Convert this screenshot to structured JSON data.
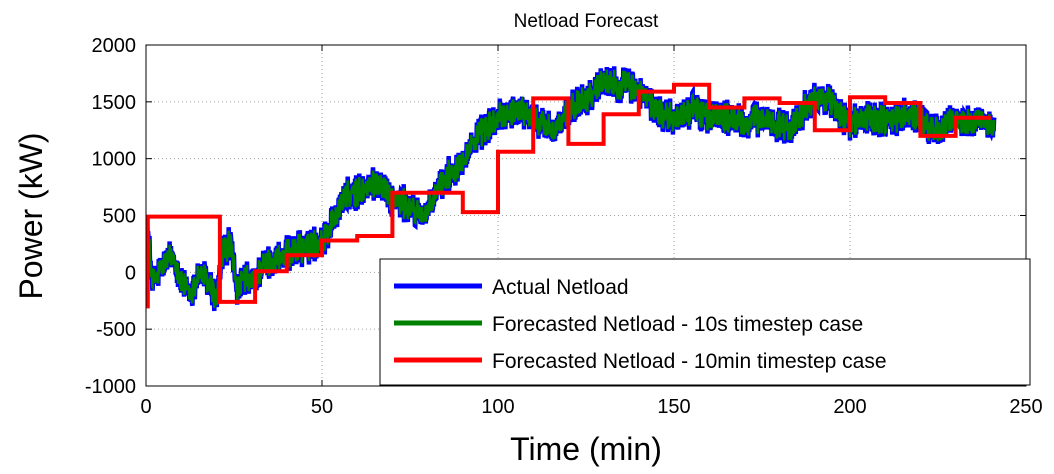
{
  "chart_data": {
    "type": "line",
    "title": "Netload Forecast",
    "xlabel": "Time (min)",
    "ylabel": "Power (kW)",
    "xlim": [
      0,
      250
    ],
    "ylim": [
      -1000,
      2000
    ],
    "xticks": [
      0,
      50,
      100,
      150,
      200,
      250
    ],
    "yticks": [
      -1000,
      -500,
      0,
      500,
      1000,
      1500,
      2000
    ],
    "xtick_labels": [
      "0",
      "50",
      "100",
      "150",
      "200",
      "250"
    ],
    "ytick_labels": [
      "-1000",
      "-500",
      "0",
      "500",
      "1000",
      "1500",
      "2000"
    ],
    "grid": true,
    "legend_position": "bottom-right",
    "series": [
      {
        "name": "Actual Netload",
        "color": "#0000ff",
        "style": "noisy",
        "x": [
          0,
          2,
          5,
          8,
          10,
          13,
          15,
          18,
          20,
          22,
          24,
          26,
          28,
          30,
          33,
          36,
          40,
          43,
          46,
          50,
          53,
          56,
          60,
          63,
          66,
          70,
          73,
          76,
          80,
          83,
          86,
          90,
          93,
          96,
          100,
          103,
          106,
          110,
          113,
          116,
          120,
          123,
          126,
          130,
          133,
          136,
          140,
          143,
          146,
          150,
          153,
          156,
          160,
          163,
          166,
          170,
          173,
          176,
          180,
          183,
          186,
          190,
          193,
          196,
          200,
          203,
          206,
          210,
          213,
          216,
          220,
          223,
          226,
          230,
          233,
          236,
          240,
          241
        ],
        "y": [
          450,
          -100,
          80,
          150,
          -100,
          -200,
          0,
          -100,
          -250,
          200,
          250,
          -150,
          -50,
          -100,
          50,
          100,
          150,
          200,
          230,
          280,
          450,
          650,
          700,
          750,
          800,
          650,
          600,
          550,
          500,
          750,
          850,
          1000,
          1150,
          1250,
          1350,
          1400,
          1450,
          1350,
          1300,
          1250,
          1400,
          1500,
          1550,
          1700,
          1650,
          1650,
          1600,
          1500,
          1400,
          1350,
          1400,
          1450,
          1350,
          1400,
          1350,
          1300,
          1350,
          1350,
          1300,
          1250,
          1400,
          1500,
          1550,
          1450,
          1300,
          1350,
          1350,
          1350,
          1350,
          1400,
          1350,
          1250,
          1250,
          1350,
          1300,
          1350,
          1300,
          1250
        ],
        "noise_amplitude": 130
      },
      {
        "name": "Forecasted Netload - 10s timestep case",
        "color": "#008000",
        "style": "noisy",
        "x": [
          0,
          2,
          5,
          8,
          10,
          13,
          15,
          18,
          20,
          22,
          24,
          26,
          28,
          30,
          33,
          36,
          40,
          43,
          46,
          50,
          53,
          56,
          60,
          63,
          66,
          70,
          73,
          76,
          80,
          83,
          86,
          90,
          93,
          96,
          100,
          103,
          106,
          110,
          113,
          116,
          120,
          123,
          126,
          130,
          133,
          136,
          140,
          143,
          146,
          150,
          153,
          156,
          160,
          163,
          166,
          170,
          173,
          176,
          180,
          183,
          186,
          190,
          193,
          196,
          200,
          203,
          206,
          210,
          213,
          216,
          220,
          223,
          226,
          230,
          233,
          236,
          240,
          241
        ],
        "y": [
          450,
          -100,
          80,
          150,
          -100,
          -200,
          0,
          -100,
          -250,
          200,
          250,
          -150,
          -50,
          -100,
          50,
          100,
          150,
          200,
          230,
          280,
          450,
          650,
          700,
          750,
          800,
          650,
          600,
          550,
          500,
          750,
          850,
          1000,
          1150,
          1250,
          1350,
          1400,
          1450,
          1350,
          1300,
          1250,
          1400,
          1500,
          1550,
          1700,
          1650,
          1650,
          1600,
          1500,
          1400,
          1350,
          1400,
          1450,
          1350,
          1400,
          1350,
          1300,
          1350,
          1350,
          1300,
          1250,
          1400,
          1500,
          1550,
          1450,
          1300,
          1350,
          1350,
          1350,
          1350,
          1400,
          1350,
          1250,
          1250,
          1350,
          1300,
          1350,
          1300,
          1250
        ],
        "noise_amplitude": 105
      },
      {
        "name": "Forecasted Netload - 10min timestep case",
        "color": "#ff0000",
        "style": "step",
        "x": [
          0,
          0.5,
          10,
          20,
          21,
          30,
          31,
          40,
          50,
          60,
          70,
          80,
          90,
          100,
          110,
          120,
          130,
          140,
          150,
          160,
          170,
          180,
          190,
          200,
          210,
          220,
          230,
          240
        ],
        "y": [
          -300,
          490,
          490,
          490,
          -260,
          -260,
          10,
          150,
          280,
          320,
          700,
          700,
          530,
          1060,
          1530,
          1130,
          1390,
          1590,
          1650,
          1450,
          1530,
          1490,
          1250,
          1540,
          1490,
          1200,
          1360,
          1360
        ]
      }
    ]
  }
}
